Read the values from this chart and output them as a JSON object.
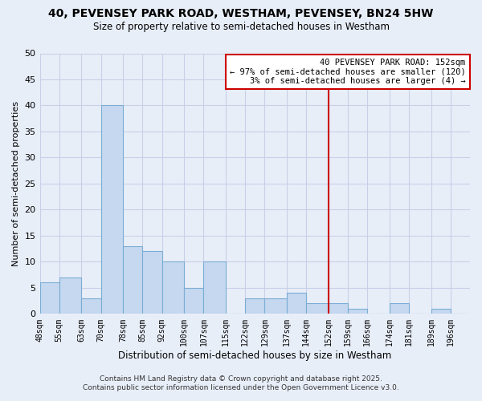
{
  "title": "40, PEVENSEY PARK ROAD, WESTHAM, PEVENSEY, BN24 5HW",
  "subtitle": "Size of property relative to semi-detached houses in Westham",
  "xlabel": "Distribution of semi-detached houses by size in Westham",
  "ylabel": "Number of semi-detached properties",
  "bin_labels": [
    "48sqm",
    "55sqm",
    "63sqm",
    "70sqm",
    "78sqm",
    "85sqm",
    "92sqm",
    "100sqm",
    "107sqm",
    "115sqm",
    "122sqm",
    "129sqm",
    "137sqm",
    "144sqm",
    "152sqm",
    "159sqm",
    "166sqm",
    "174sqm",
    "181sqm",
    "189sqm",
    "196sqm"
  ],
  "bin_edges": [
    48,
    55,
    63,
    70,
    78,
    85,
    92,
    100,
    107,
    115,
    122,
    129,
    137,
    144,
    152,
    159,
    166,
    174,
    181,
    189,
    196
  ],
  "counts": [
    6,
    7,
    3,
    40,
    13,
    12,
    10,
    5,
    10,
    0,
    3,
    3,
    4,
    2,
    2,
    1,
    0,
    2,
    0,
    1,
    0
  ],
  "bar_color": "#c5d8f0",
  "bar_edge_color": "#7badd4",
  "marker_value": 152,
  "marker_color": "#cc0000",
  "ylim": [
    0,
    50
  ],
  "yticks": [
    0,
    5,
    10,
    15,
    20,
    25,
    30,
    35,
    40,
    45,
    50
  ],
  "annotation_title": "40 PEVENSEY PARK ROAD: 152sqm",
  "annotation_line1": "← 97% of semi-detached houses are smaller (120)",
  "annotation_line2": "3% of semi-detached houses are larger (4) →",
  "footer_line1": "Contains HM Land Registry data © Crown copyright and database right 2025.",
  "footer_line2": "Contains public sector information licensed under the Open Government Licence v3.0.",
  "bg_color": "#e8eef8",
  "plot_bg_color": "#e8eef8",
  "grid_color": "#c8d0e8"
}
